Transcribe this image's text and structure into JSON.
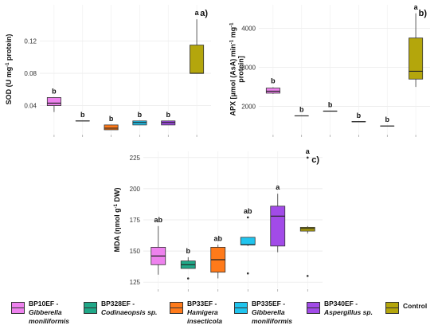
{
  "chart_data": [
    {
      "type": "boxplot",
      "panel_label": "a)",
      "ylabel": "SOD (U mg-1 protein)",
      "ylabel_parts": {
        "pre": "SOD (U mg",
        "sup": "-1",
        "post": " protein)"
      },
      "yticks": [
        0.04,
        0.08,
        0.12
      ],
      "ytick_labels": [
        "0.04",
        "0.08",
        "0.12"
      ],
      "ylim": [
        0.005,
        0.165
      ],
      "categories": [
        "BP10EF",
        "BP328EF",
        "BP33EF",
        "BP335EF",
        "BP340EF",
        "Control"
      ],
      "boxes": [
        {
          "min": 0.032,
          "q1": 0.04,
          "median": 0.043,
          "q3": 0.05,
          "max": 0.05,
          "outliers": [],
          "letter": "b"
        },
        {
          "min": 0.021,
          "q1": 0.021,
          "median": 0.021,
          "q3": 0.021,
          "max": 0.021,
          "outliers": [],
          "letter": "b"
        },
        {
          "min": 0.01,
          "q1": 0.01,
          "median": 0.012,
          "q3": 0.016,
          "max": 0.016,
          "outliers": [],
          "letter": "b"
        },
        {
          "min": 0.016,
          "q1": 0.016,
          "median": 0.019,
          "q3": 0.021,
          "max": 0.021,
          "outliers": [],
          "letter": "b"
        },
        {
          "min": 0.016,
          "q1": 0.016,
          "median": 0.019,
          "q3": 0.021,
          "max": 0.021,
          "outliers": [],
          "letter": "b"
        },
        {
          "min": 0.08,
          "q1": 0.08,
          "median": 0.08,
          "q3": 0.115,
          "max": 0.147,
          "outliers": [],
          "letter": "a"
        }
      ]
    },
    {
      "type": "boxplot",
      "panel_label": "b)",
      "ylabel": "APX [µmol (AsA) min-1 mg-1 protein]",
      "ylabel_parts": {
        "line1_pre": "APX [µmol (AsA) min",
        "sup1": "-1",
        "line1_mid": " mg",
        "sup2": "-1",
        "line2": "protein]"
      },
      "yticks": [
        2000,
        3000,
        4000
      ],
      "ytick_labels": [
        "2000",
        "3000",
        "4000"
      ],
      "ylim": [
        1300,
        4600
      ],
      "categories": [
        "BP10EF",
        "BP328EF",
        "BP33EF",
        "BP335EF",
        "BP340EF",
        "Control"
      ],
      "boxes": [
        {
          "min": 2320,
          "q1": 2340,
          "median": 2390,
          "q3": 2470,
          "max": 2490,
          "outliers": [],
          "letter": "b"
        },
        {
          "min": 1760,
          "q1": 1760,
          "median": 1760,
          "q3": 1760,
          "max": 1760,
          "outliers": [],
          "letter": "b"
        },
        {
          "min": 1880,
          "q1": 1880,
          "median": 1880,
          "q3": 1880,
          "max": 1880,
          "outliers": [],
          "letter": "b"
        },
        {
          "min": 1610,
          "q1": 1610,
          "median": 1610,
          "q3": 1610,
          "max": 1610,
          "outliers": [],
          "letter": "b"
        },
        {
          "min": 1500,
          "q1": 1500,
          "median": 1500,
          "q3": 1500,
          "max": 1500,
          "outliers": [],
          "letter": "b"
        },
        {
          "min": 2500,
          "q1": 2700,
          "median": 2900,
          "q3": 3750,
          "max": 4380,
          "outliers": [],
          "letter": "a"
        }
      ]
    },
    {
      "type": "boxplot",
      "panel_label": "c)",
      "ylabel": "MDA (ηmol g-1 DW)",
      "ylabel_parts": {
        "pre": "MDA (ηmol g",
        "sup": "-1",
        "post": " DW)"
      },
      "yticks": [
        125,
        150,
        175,
        200,
        225
      ],
      "ytick_labels": [
        "125",
        "150",
        "175",
        "200",
        "225"
      ],
      "ylim": [
        120,
        230
      ],
      "categories": [
        "BP10EF",
        "BP328EF",
        "BP33EF",
        "BP335EF",
        "BP340EF",
        "Control"
      ],
      "boxes": [
        {
          "min": 131,
          "q1": 139,
          "median": 146,
          "q3": 153,
          "max": 170,
          "outliers": [],
          "letter": "ab"
        },
        {
          "min": 136,
          "q1": 136,
          "median": 139,
          "q3": 142,
          "max": 145,
          "outliers": [
            128
          ],
          "letter": "b"
        },
        {
          "min": 128,
          "q1": 133,
          "median": 143,
          "q3": 153,
          "max": 155,
          "outliers": [],
          "letter": "ab"
        },
        {
          "min": 154,
          "q1": 155,
          "median": 155,
          "q3": 161,
          "max": 161,
          "outliers": [
            132,
            177
          ],
          "letter": "ab"
        },
        {
          "min": 149,
          "q1": 154,
          "median": 178,
          "q3": 186,
          "max": 196,
          "outliers": [],
          "letter": "a"
        },
        {
          "min": 164,
          "q1": 166,
          "median": 168,
          "q3": 169,
          "max": 170,
          "outliers": [
            225,
            130
          ],
          "letter": "a"
        }
      ]
    }
  ],
  "colors": {
    "BP10EF": "#ee82ee",
    "BP328EF": "#20a888",
    "BP33EF": "#ff7a1a",
    "BP335EF": "#20c4ee",
    "BP340EF": "#a24be8",
    "Control": "#b4a60c"
  },
  "legend": [
    {
      "key": "BP10EF",
      "line1": "BP10EF -",
      "line2": "Gibberella",
      "line3": "moniliformis"
    },
    {
      "key": "BP328EF",
      "line1": "BP328EF -",
      "line2": "Codinaeopsis sp.",
      "line3": ""
    },
    {
      "key": "BP33EF",
      "line1": "BP33EF -",
      "line2": "Hamigera",
      "line3": "insecticola"
    },
    {
      "key": "BP335EF",
      "line1": "BP335EF -",
      "line2": "Gibberella",
      "line3": "moniliformis"
    },
    {
      "key": "BP340EF",
      "line1": "BP340EF -",
      "line2": "Aspergillus sp.",
      "line3": ""
    },
    {
      "key": "Control",
      "line1": "Control",
      "line2": "",
      "line3": ""
    }
  ]
}
